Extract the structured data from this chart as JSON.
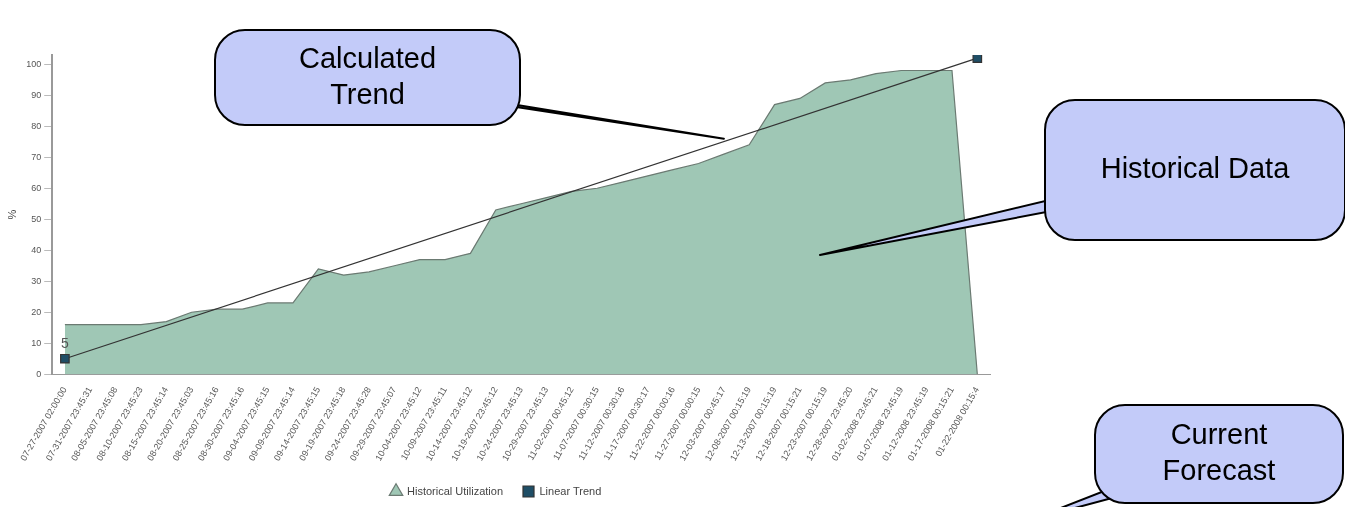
{
  "chart_data": {
    "type": "area",
    "ylabel": "%",
    "ylim": [
      0,
      103
    ],
    "yticks": [
      0,
      10,
      20,
      30,
      40,
      50,
      60,
      70,
      80,
      90,
      100
    ],
    "grid": false,
    "legend": "bottom",
    "categories": [
      "07-27-2007 02:00:00",
      "07-31-2007 23:45:31",
      "08-05-2007 23:45:08",
      "08-10-2007 23:45:23",
      "08-15-2007 23:45:14",
      "08-20-2007 23:45:03",
      "08-25-2007 23:45:16",
      "08-30-2007 23:45:16",
      "09-04-2007 23:45:15",
      "09-09-2007 23:45:14",
      "09-14-2007 23:45:15",
      "09-19-2007 23:45:18",
      "09-24-2007 23:45:28",
      "09-29-2007 23:45:07",
      "10-04-2007 23:45:12",
      "10-09-2007 23:45:11",
      "10-14-2007 23:45:12",
      "10-19-2007 23:45:12",
      "10-24-2007 23:45:13",
      "10-29-2007 23:45:13",
      "11-02-2007 00:45:12",
      "11-07-2007 00:30:15",
      "11-12-2007 00:30:16",
      "11-17-2007 00:30:17",
      "11-22-2007 00:00:16",
      "11-27-2007 00:00:15",
      "12-03-2007 00:45:17",
      "12-08-2007 00:15:19",
      "12-13-2007 00:15:19",
      "12-18-2007 00:15:21",
      "12-23-2007 00:15:19",
      "12-28-2007 23:45:20",
      "01-02-2008 23:45:21",
      "01-07-2008 23:45:19",
      "01-12-2008 23:45:19",
      "01-17-2008 00:15:21",
      "01-22-2008 00:15:4"
    ],
    "series": [
      {
        "name": "Historical Utilization",
        "color": "#9fc7b5",
        "values": [
          16,
          16,
          16,
          16,
          17,
          20,
          21,
          21,
          23,
          23,
          34,
          32,
          33,
          35,
          37,
          37,
          39,
          53,
          55,
          57,
          59,
          60,
          62,
          64,
          66,
          68,
          71,
          74,
          87,
          89,
          94,
          95,
          97,
          98,
          98,
          98,
          0
        ]
      },
      {
        "name": "Linear Trend",
        "type": "line",
        "color": "#1f4e66",
        "marker": "square",
        "values": [
          5,
          null,
          null,
          null,
          null,
          null,
          null,
          null,
          null,
          null,
          null,
          null,
          null,
          null,
          null,
          null,
          null,
          null,
          null,
          null,
          null,
          null,
          null,
          null,
          null,
          null,
          null,
          null,
          null,
          null,
          null,
          null,
          null,
          null,
          null,
          null,
          102
        ],
        "value_labels": [
          "5",
          null,
          null,
          null,
          null,
          null,
          null,
          null,
          null,
          null,
          null,
          null,
          null,
          null,
          null,
          null,
          null,
          null,
          null,
          null,
          null,
          null,
          null,
          null,
          null,
          null,
          null,
          null,
          null,
          null,
          null,
          null,
          null,
          null,
          null,
          null,
          null
        ]
      }
    ],
    "annotations": [
      {
        "text": "Calculated Trend",
        "x": "12-03-2007 00:45:17",
        "y": 76
      },
      "Historical Data",
      "Current Forecast"
    ]
  }
}
